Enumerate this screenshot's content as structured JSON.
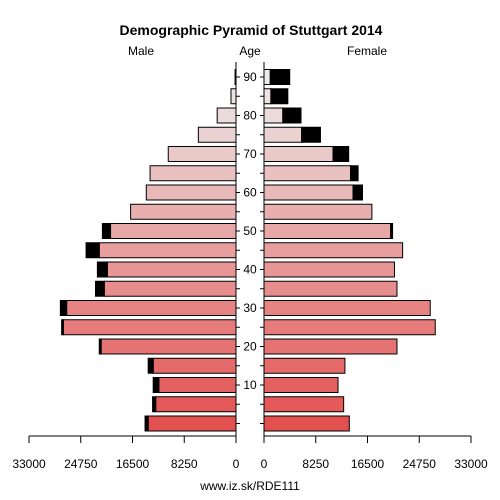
{
  "chart_data": {
    "type": "bar",
    "title": "Demographic Pyramid of Stuttgart 2014",
    "left_label": "Male",
    "center_label": "Age",
    "right_label": "Female",
    "source": "www.iz.sk/RDE111",
    "xlim": [
      0,
      33000
    ],
    "x_ticks": [
      "33000",
      "24750",
      "16500",
      "8250",
      "0"
    ],
    "x_tick_values": [
      33000,
      24750,
      16500,
      8250,
      0
    ],
    "age_groups": [
      "0-4",
      "5-9",
      "10-14",
      "15-19",
      "20-24",
      "25-29",
      "30-34",
      "35-39",
      "40-44",
      "45-49",
      "50-54",
      "55-59",
      "60-64",
      "65-69",
      "70-74",
      "75-79",
      "80-84",
      "85-89",
      "90+"
    ],
    "age_ticks": [
      "10",
      "20",
      "30",
      "40",
      "50",
      "60",
      "70",
      "80",
      "90"
    ],
    "age_tick_groups": [
      2,
      4,
      6,
      8,
      10,
      12,
      14,
      16,
      18
    ],
    "series": [
      {
        "name": "Male",
        "values": [
          14000,
          12800,
          12300,
          13200,
          21500,
          27500,
          27000,
          21000,
          20500,
          21800,
          20000,
          16800,
          14300,
          13700,
          10800,
          6000,
          3000,
          800,
          150
        ],
        "surplus": [
          500,
          500,
          900,
          800,
          300,
          300,
          1000,
          1400,
          1600,
          2100,
          1300,
          0,
          0,
          0,
          0,
          0,
          0,
          0,
          0
        ]
      },
      {
        "name": "Female",
        "values": [
          13600,
          12700,
          11800,
          12900,
          21200,
          27300,
          26500,
          21200,
          20800,
          22100,
          20200,
          17200,
          14200,
          13800,
          11000,
          6000,
          3000,
          1100,
          1000
        ],
        "surplus": [
          0,
          0,
          0,
          0,
          0,
          0,
          0,
          0,
          0,
          0,
          300,
          0,
          1500,
          1200,
          2500,
          3000,
          2900,
          2700,
          3100
        ]
      }
    ],
    "colors": {
      "young": "#e35050",
      "old": "#ececec",
      "surplus": "#000000",
      "stroke": "#000000"
    }
  }
}
